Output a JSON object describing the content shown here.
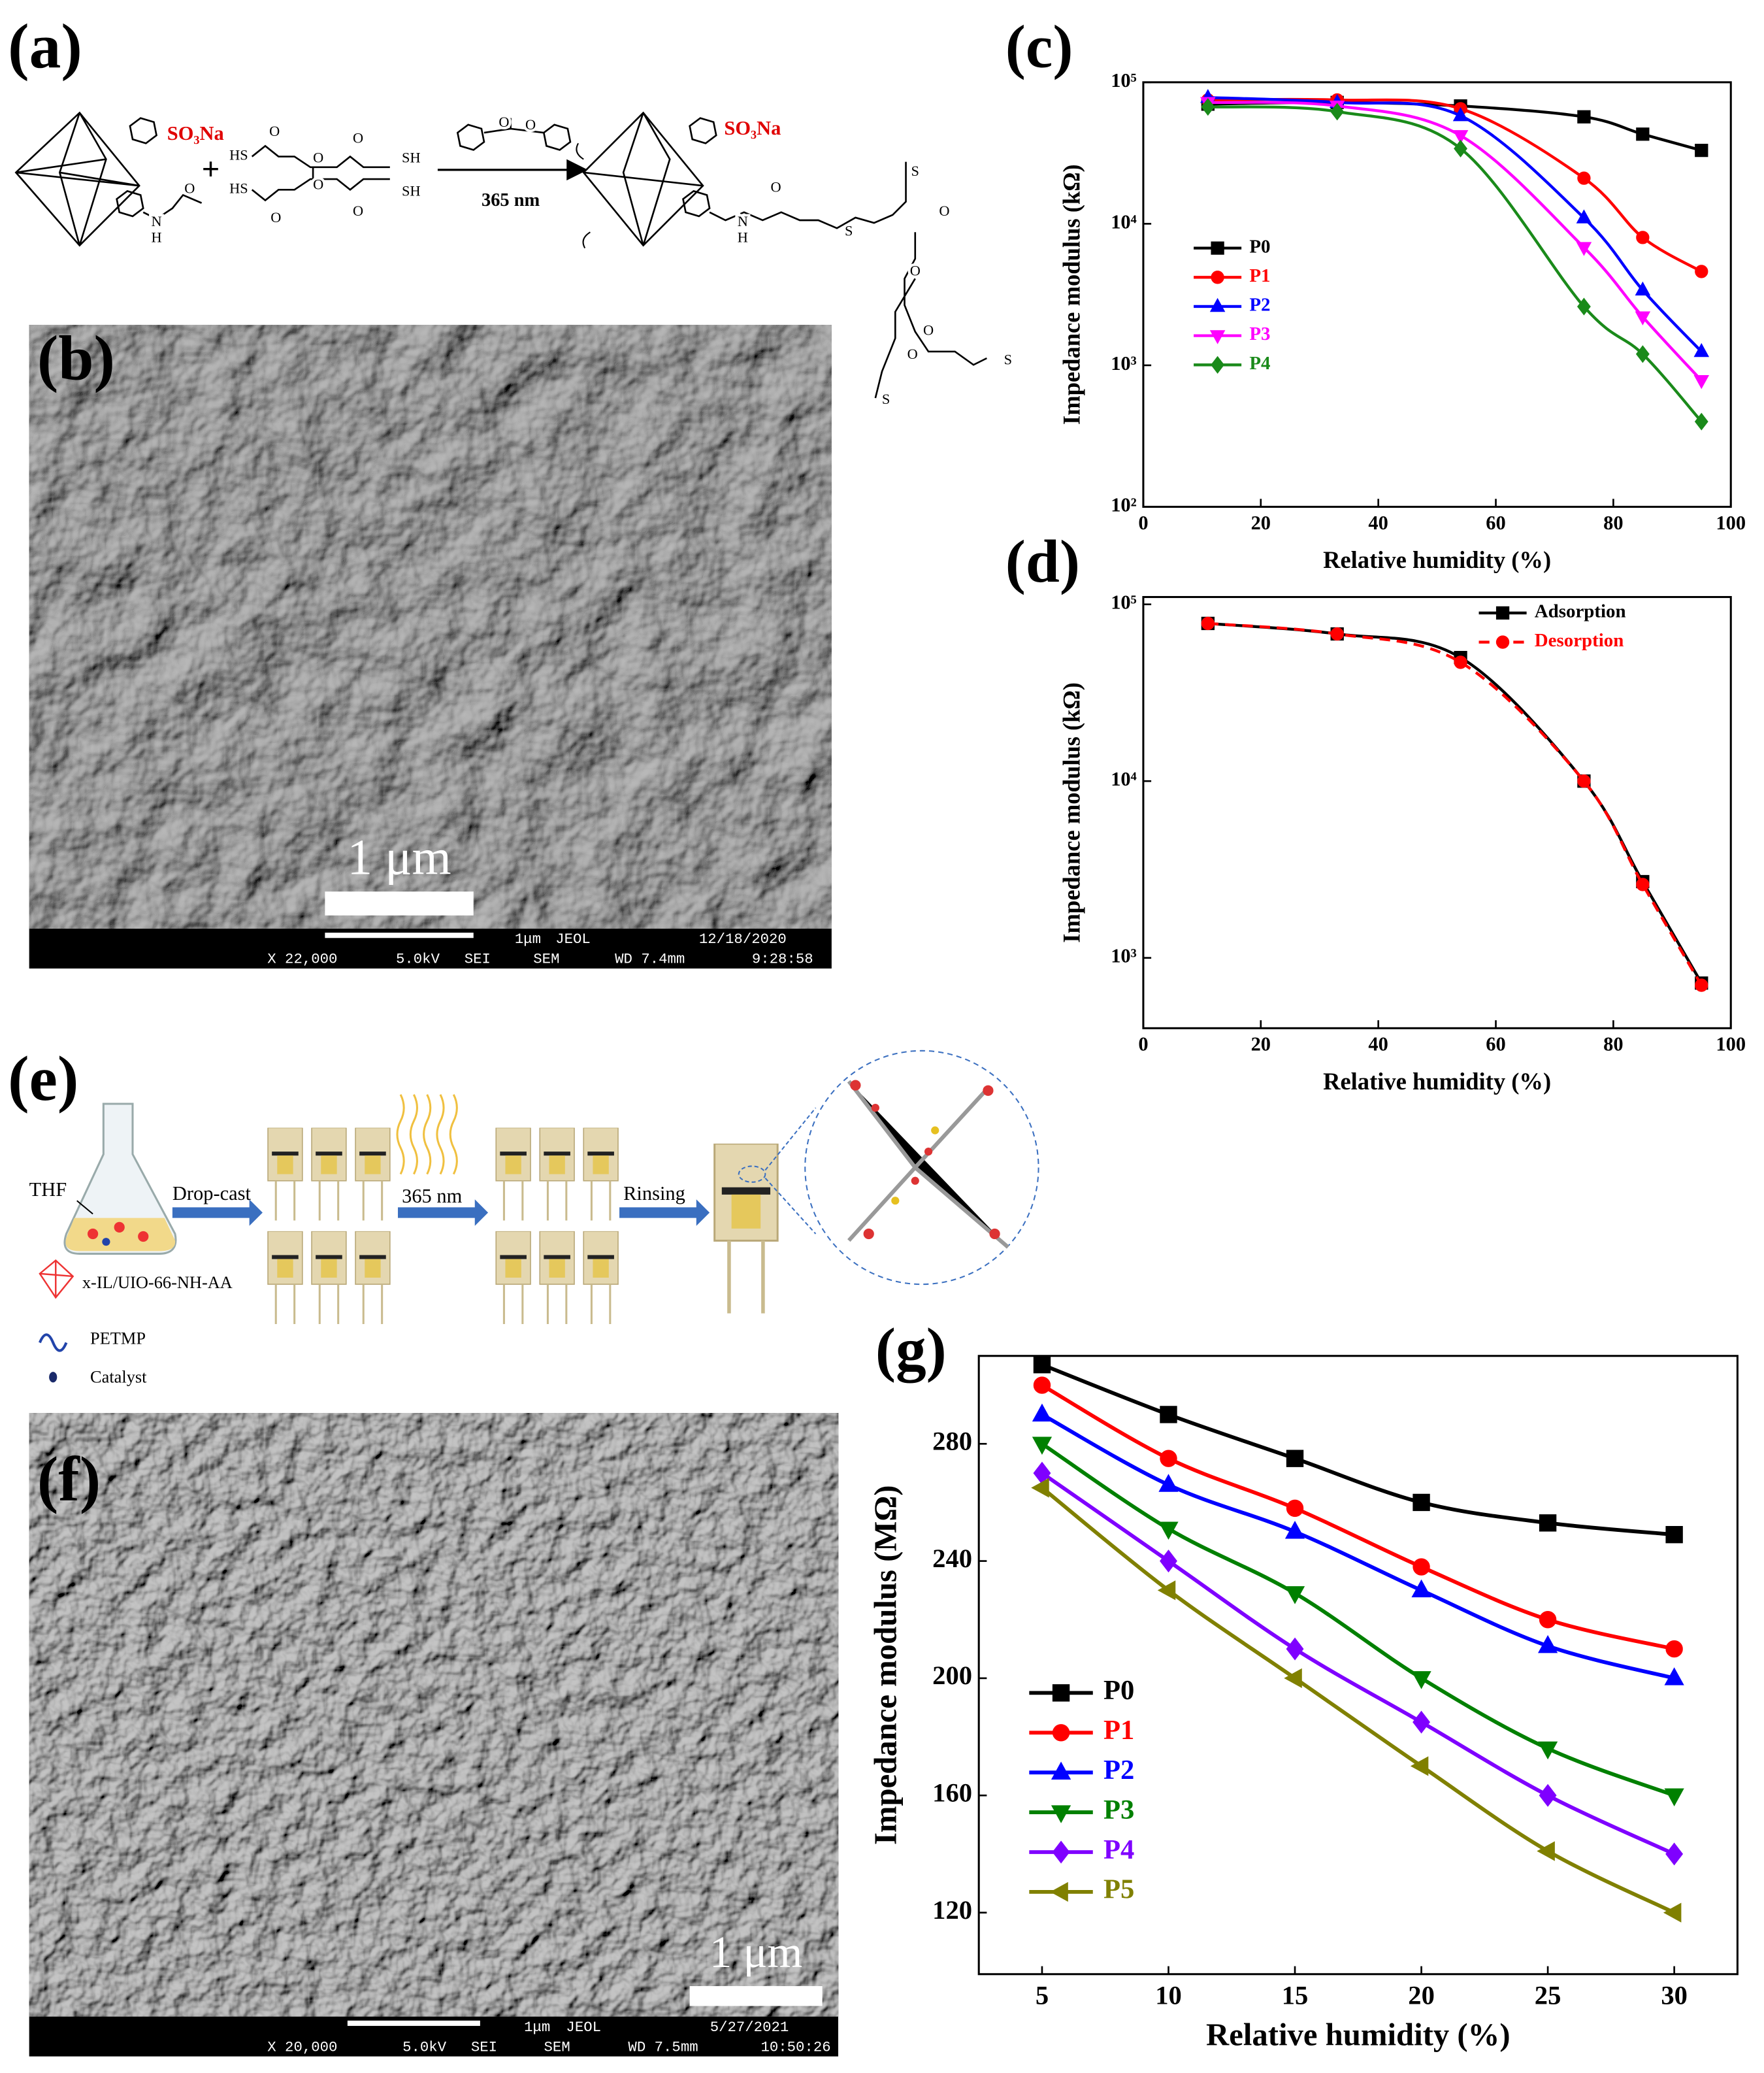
{
  "figure": {
    "panel_labels": [
      "(a)",
      "(b)",
      "(e)",
      "(f)"
    ],
    "scheme_a": {
      "so3na": [
        "SO₃Na",
        "SO₃Na"
      ],
      "plus": "+",
      "light": "365 nm",
      "atoms": [
        "O",
        "N",
        "H",
        "HS",
        "O",
        "O",
        "O",
        "SH",
        "HS",
        "O",
        "O",
        "O",
        "SH",
        "O",
        "O",
        "N",
        "H",
        "O",
        "S",
        "O",
        "S",
        "O",
        "O",
        "S",
        "O",
        "S"
      ]
    },
    "sem_b": {
      "scale_label": "1 μm",
      "info": [
        "1μm",
        "JEOL",
        "12/18/2020",
        "X 22,000",
        "5.0kV",
        "SEI",
        "SEM",
        "WD 7.4mm",
        "9:28:58"
      ]
    },
    "scheme_e": {
      "solvent": "THF",
      "step1": "Drop-cast",
      "step2": "365 nm",
      "step3": "Rinsing",
      "legend": [
        "x-IL/UIO-66-NH-AA",
        "PETMP",
        "Catalyst"
      ]
    },
    "sem_f": {
      "scale_label": "1 μm",
      "info": [
        "1μm",
        "JEOL",
        "5/27/2021",
        "X 20,000",
        "5.0kV",
        "SEI",
        "SEM",
        "WD 7.5mm",
        "10:50:26"
      ]
    }
  },
  "chart_data": [
    {
      "type": "line",
      "label": "(c)",
      "xlabel": "Relative humidity (%)",
      "ylabel": "Impedance modulus (kΩ)",
      "log_y": true,
      "legend": "center left",
      "xlim": [
        0,
        100
      ],
      "xticks": [
        0,
        20,
        40,
        60,
        80,
        100
      ],
      "ylim": [
        100,
        100000
      ],
      "yticks": [
        {
          "value": 100,
          "label": "10²"
        },
        {
          "value": 1000,
          "label": "10³"
        },
        {
          "value": 10000,
          "label": "10⁴"
        },
        {
          "value": 100000,
          "label": "10⁵"
        }
      ],
      "x": [
        11,
        33,
        54,
        75,
        85,
        95
      ],
      "series": [
        {
          "name": "P0",
          "color": "#000000",
          "marker": "square",
          "values": [
            70000,
            72000,
            68000,
            57000,
            43000,
            33000
          ]
        },
        {
          "name": "P1",
          "color": "#ff0000",
          "marker": "circle",
          "values": [
            75000,
            75000,
            65000,
            21000,
            8000,
            4600
          ]
        },
        {
          "name": "P2",
          "color": "#0000ff",
          "marker": "triangle-up",
          "values": [
            78000,
            72000,
            58000,
            11000,
            3400,
            1250
          ]
        },
        {
          "name": "P3",
          "color": "#ff00ff",
          "marker": "triangle-down",
          "values": [
            72000,
            68000,
            42000,
            6800,
            2200,
            780
          ]
        },
        {
          "name": "P4",
          "color": "#1a8a1a",
          "marker": "diamond",
          "values": [
            67000,
            62000,
            34000,
            2600,
            1200,
            400
          ]
        }
      ]
    },
    {
      "type": "line",
      "label": "(d)",
      "xlabel": "Relative humidity (%)",
      "ylabel": "Impedance modulus (kΩ)",
      "log_y": true,
      "legend": "upper right",
      "xlim": [
        0,
        100
      ],
      "xticks": [
        0,
        20,
        40,
        60,
        80,
        100
      ],
      "ylim": [
        400,
        110000
      ],
      "yticks": [
        {
          "value": 1000,
          "label": "10³"
        },
        {
          "value": 10000,
          "label": "10⁴"
        },
        {
          "value": 100000,
          "label": "10⁵"
        }
      ],
      "x": [
        11,
        33,
        54,
        75,
        85,
        95
      ],
      "series": [
        {
          "name": "Adsorption",
          "color": "#000000",
          "marker": "square",
          "dash": false,
          "values": [
            78000,
            68000,
            50000,
            10000,
            2700,
            720
          ]
        },
        {
          "name": "Desorption",
          "color": "#ff0000",
          "marker": "circle",
          "dash": true,
          "values": [
            78000,
            68000,
            47000,
            10000,
            2600,
            700
          ]
        }
      ]
    },
    {
      "type": "line",
      "label": "(g)",
      "xlabel": "Relative humidity (%)",
      "ylabel": "Impedance modulus (MΩ)",
      "log_y": false,
      "legend": "lower left",
      "xlim": [
        2.5,
        32.5
      ],
      "xticks": [
        5,
        10,
        15,
        20,
        25,
        30
      ],
      "ylim": [
        99,
        310
      ],
      "yticks": [
        120,
        160,
        200,
        240,
        280
      ],
      "x": [
        5,
        10,
        15,
        20,
        25,
        30
      ],
      "series": [
        {
          "name": "P0",
          "color": "#000000",
          "marker": "square",
          "values": [
            307,
            290,
            275,
            260,
            253,
            249
          ]
        },
        {
          "name": "P1",
          "color": "#ff0000",
          "marker": "circle",
          "values": [
            300,
            275,
            258,
            238,
            220,
            210
          ]
        },
        {
          "name": "P2",
          "color": "#0000ff",
          "marker": "triangle-up",
          "values": [
            290,
            266,
            250,
            230,
            211,
            200
          ]
        },
        {
          "name": "P3",
          "color": "#008000",
          "marker": "triangle-down",
          "values": [
            280,
            251,
            229,
            200,
            176,
            160
          ]
        },
        {
          "name": "P4",
          "color": "#7f00ff",
          "marker": "diamond",
          "values": [
            270,
            240,
            210,
            185,
            160,
            140
          ]
        },
        {
          "name": "P5",
          "color": "#808000",
          "marker": "triangle-left",
          "values": [
            265,
            230,
            200,
            170,
            141,
            120
          ]
        }
      ]
    }
  ]
}
